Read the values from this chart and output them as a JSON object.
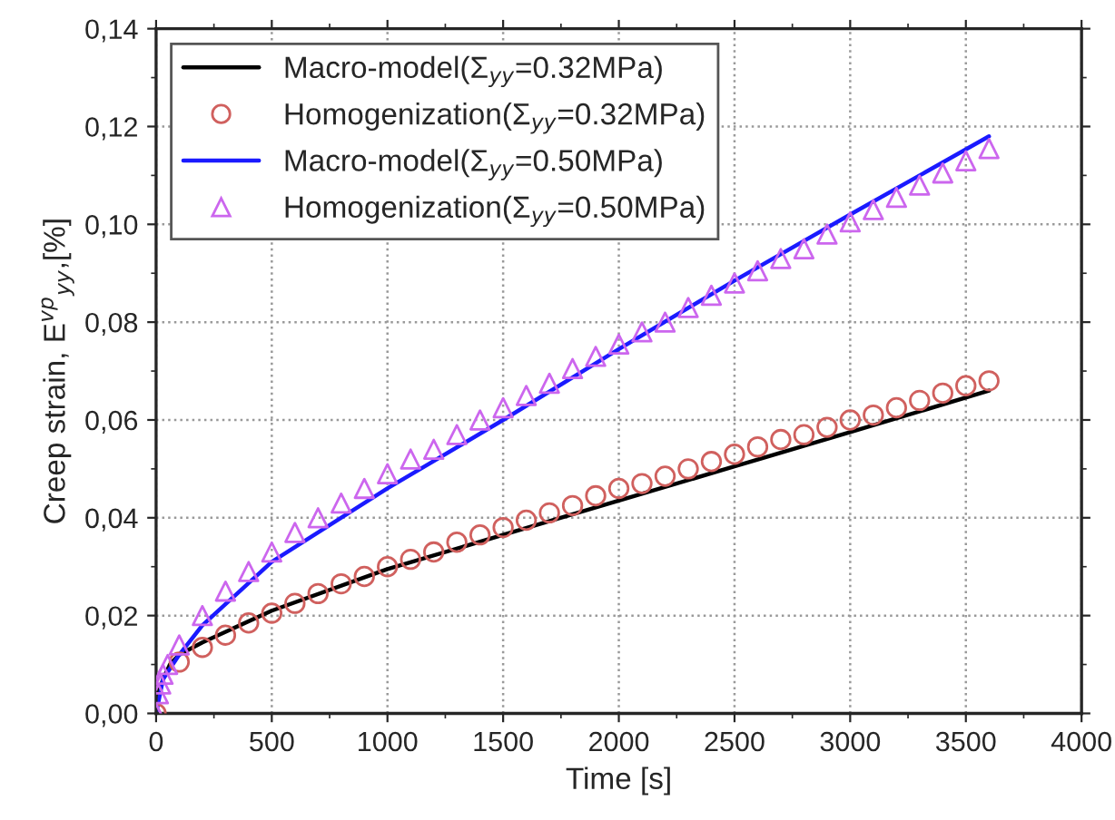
{
  "chart_data": {
    "type": "line",
    "xlabel": "Time [s]",
    "ylabel": "Creep strain, E$^{vp}$$_{yy}$,[%]",
    "xlim": [
      0,
      4000
    ],
    "xticks": [
      0,
      500,
      1000,
      1500,
      2000,
      2500,
      3000,
      3500,
      4000
    ],
    "ylim": [
      0,
      0.14
    ],
    "yticks": [
      {
        "value": 0,
        "label": "0,00"
      },
      {
        "value": 0.02,
        "label": "0,02"
      },
      {
        "value": 0.04,
        "label": "0,04"
      },
      {
        "value": 0.06,
        "label": "0,06"
      },
      {
        "value": 0.08,
        "label": "0,08"
      },
      {
        "value": 0.1,
        "label": "0,10"
      },
      {
        "value": 0.12,
        "label": "0,12"
      },
      {
        "value": 0.14,
        "label": "0,14"
      }
    ],
    "grid": true,
    "legend": "top left",
    "series": [
      {
        "name": "Macro-model(Σ$_{yy}$=0.32MPa)",
        "type": "line",
        "color": "#000000",
        "marker": "none",
        "line_style": "solid",
        "x": [
          0,
          10,
          30,
          60,
          100,
          200,
          500,
          1000,
          1500,
          2000,
          2500,
          3000,
          3600
        ],
        "values": [
          0,
          0.004,
          0.007,
          0.01,
          0.012,
          0.0145,
          0.021,
          0.0295,
          0.0365,
          0.0435,
          0.0505,
          0.0575,
          0.066
        ]
      },
      {
        "name": "Homogenization(Σ$_{yy}$=0.32MPa)",
        "type": "scatter",
        "color": "#d0605e",
        "marker": "circle",
        "x": [
          0,
          10,
          20,
          30,
          50,
          100,
          200,
          300,
          400,
          500,
          600,
          700,
          800,
          900,
          1000,
          1100,
          1200,
          1300,
          1400,
          1500,
          1600,
          1700,
          1800,
          1900,
          2000,
          2100,
          2200,
          2300,
          2400,
          2500,
          2600,
          2700,
          2800,
          2900,
          3000,
          3100,
          3200,
          3300,
          3400,
          3500,
          3600
        ],
        "values": [
          0,
          null,
          null,
          null,
          null,
          0.0105,
          0.0135,
          0.016,
          0.0185,
          0.0205,
          0.0225,
          0.0245,
          0.0265,
          0.028,
          0.03,
          0.0315,
          0.033,
          0.035,
          0.0365,
          0.038,
          0.0395,
          0.041,
          0.0425,
          0.0445,
          0.046,
          0.047,
          0.0485,
          0.05,
          0.0515,
          0.053,
          0.0545,
          0.056,
          0.057,
          0.0585,
          0.06,
          0.061,
          0.0625,
          0.064,
          0.0655,
          0.067,
          0.068
        ]
      },
      {
        "name": "Macro-model(Σ$_{yy}$=0.50MPa)",
        "type": "line",
        "color": "#1a1aff",
        "marker": "none",
        "line_style": "solid",
        "x": [
          0,
          30,
          100,
          200,
          500,
          1000,
          1500,
          2000,
          2500,
          3000,
          3600
        ],
        "values": [
          0,
          0.007,
          0.012,
          0.018,
          0.031,
          0.046,
          0.06,
          0.0745,
          0.0885,
          0.102,
          0.118
        ]
      },
      {
        "name": "Homogenization(Σ$_{yy}$=0.50MPa)",
        "type": "scatter",
        "color": "#cc66ee",
        "marker": "triangle",
        "x": [
          0,
          10,
          20,
          30,
          50,
          100,
          200,
          300,
          400,
          500,
          600,
          700,
          800,
          900,
          1000,
          1100,
          1200,
          1300,
          1400,
          1500,
          1600,
          1700,
          1800,
          1900,
          2000,
          2100,
          2200,
          2300,
          2400,
          2500,
          2600,
          2700,
          2800,
          2900,
          3000,
          3100,
          3200,
          3300,
          3400,
          3500,
          3600
        ],
        "values": [
          0,
          0.004,
          0.006,
          0.008,
          0.01,
          0.014,
          0.02,
          0.025,
          0.029,
          0.033,
          0.037,
          0.04,
          0.043,
          0.046,
          0.049,
          0.052,
          0.054,
          0.057,
          0.06,
          0.0625,
          0.065,
          0.0675,
          0.0705,
          0.073,
          0.0755,
          0.078,
          0.08,
          0.083,
          0.0855,
          0.088,
          0.0905,
          0.093,
          0.095,
          0.098,
          0.1005,
          0.103,
          0.1055,
          0.108,
          0.1105,
          0.113,
          0.1155
        ]
      }
    ]
  }
}
